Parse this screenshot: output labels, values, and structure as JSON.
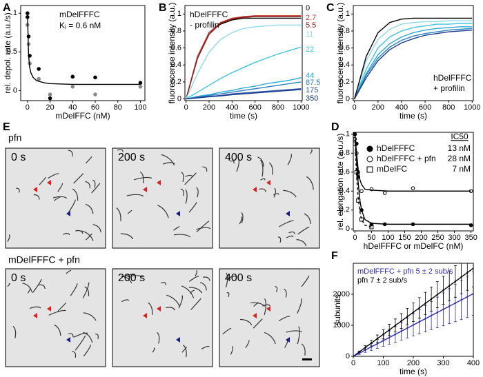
{
  "panel_labels": [
    "A",
    "B",
    "C",
    "D",
    "E",
    "F"
  ],
  "micrographs": [
    {
      "label": "pfn",
      "frames": [
        "0 s",
        "200 s",
        "400 s"
      ]
    },
    {
      "label": "mDelFFFC + pfn",
      "frames": [
        "0 s",
        "200 s",
        "400 s"
      ]
    }
  ],
  "chart_data": [
    {
      "type": "scatter",
      "annotations": [
        "mDelFFFC",
        "Kᵢ = 0.6 nM"
      ],
      "x_label": "mDelFFC (nM)",
      "y_label": "rel. depol. rate (a.u./s)",
      "xlim": [
        -6,
        104
      ],
      "xticks": [
        0,
        20,
        40,
        60,
        80,
        100
      ],
      "ylim": [
        -0.13,
        1.1
      ],
      "yticks": [
        0,
        0.5,
        1
      ],
      "series": [
        {
          "mode": "markers",
          "marker": "circle-filled",
          "color": "#000000",
          "x": [
            0,
            0,
            1,
            2,
            10,
            20,
            40,
            60,
            100
          ],
          "values": [
            1.0,
            0.95,
            0.7,
            0.45,
            0.28,
            -0.1,
            0.18,
            0.17,
            0.1
          ]
        },
        {
          "mode": "markers",
          "marker": "circle-filled",
          "color": "#888888",
          "x": [
            0,
            1,
            2,
            10,
            20,
            40,
            60,
            100
          ],
          "values": [
            0.85,
            0.6,
            0.35,
            0.15,
            -0.05,
            0.05,
            -0.05,
            0.05
          ]
        },
        {
          "mode": "line",
          "color": "#000000",
          "x": [
            0,
            1,
            2,
            3,
            5,
            8,
            10,
            15,
            20,
            40,
            60,
            80,
            100
          ],
          "values": [
            1.0,
            0.45,
            0.3,
            0.23,
            0.17,
            0.13,
            0.12,
            0.1,
            0.09,
            0.08,
            0.08,
            0.08,
            0.08
          ]
        }
      ]
    },
    {
      "type": "line",
      "annotations": [
        "hDelFFFC",
        "- profilin"
      ],
      "x_label": "time (s)",
      "y_label": "fluorescence intensity (a.u.)",
      "xlim": [
        -10,
        1010
      ],
      "xticks": [
        0,
        200,
        400,
        600,
        800,
        1000
      ],
      "ylim": [
        -0.02,
        1.1
      ],
      "yticks": [
        0,
        0.2,
        0.4,
        0.6,
        0.8,
        1
      ],
      "x": [
        0,
        100,
        200,
        300,
        400,
        500,
        600,
        700,
        800,
        900,
        1000
      ],
      "series": [
        {
          "name": "0",
          "color": "#000000",
          "values": [
            0,
            0.5,
            0.78,
            0.88,
            0.93,
            0.95,
            0.95,
            0.95,
            0.95,
            0.95,
            0.95
          ]
        },
        {
          "name": "2.7",
          "color": "#c0392b",
          "values": [
            0,
            0.5,
            0.78,
            0.9,
            0.95,
            0.97,
            0.98,
            0.98,
            0.98,
            0.98,
            0.98
          ]
        },
        {
          "name": "5.5",
          "color": "#8b1a1a",
          "values": [
            0,
            0.48,
            0.76,
            0.89,
            0.94,
            0.96,
            0.97,
            0.97,
            0.97,
            0.97,
            0.97
          ]
        },
        {
          "name": "11",
          "color": "#8fd8ea",
          "values": [
            0,
            0.3,
            0.55,
            0.7,
            0.78,
            0.83,
            0.85,
            0.86,
            0.87,
            0.87,
            0.87
          ]
        },
        {
          "name": "22",
          "color": "#3fc4e0",
          "values": [
            0,
            0.08,
            0.16,
            0.24,
            0.31,
            0.37,
            0.43,
            0.48,
            0.53,
            0.57,
            0.61
          ]
        },
        {
          "name": "44",
          "color": "#2aa8d8",
          "values": [
            0,
            0.03,
            0.05,
            0.08,
            0.1,
            0.13,
            0.15,
            0.18,
            0.2,
            0.22,
            0.25
          ]
        },
        {
          "name": "87.5",
          "color": "#2a7fc0",
          "values": [
            0,
            0.02,
            0.04,
            0.06,
            0.08,
            0.1,
            0.12,
            0.14,
            0.16,
            0.18,
            0.2
          ]
        },
        {
          "name": "175",
          "color": "#2a55a8",
          "values": [
            0,
            0.015,
            0.03,
            0.04,
            0.06,
            0.07,
            0.08,
            0.09,
            0.1,
            0.11,
            0.12
          ]
        },
        {
          "name": "350",
          "color": "#1a3a8a",
          "values": [
            0,
            0.012,
            0.025,
            0.035,
            0.05,
            0.06,
            0.07,
            0.08,
            0.09,
            0.1,
            0.11
          ]
        }
      ]
    },
    {
      "type": "line",
      "annotations": [
        "hDelFFFC",
        "+ profilin"
      ],
      "x_label": "time (s)",
      "y_label": "fluorescence intensity (a.u.)",
      "xlim": [
        -10,
        1010
      ],
      "xticks": [
        0,
        200,
        400,
        600,
        800,
        1000
      ],
      "ylim": [
        -0.02,
        1.1
      ],
      "yticks": [
        0,
        0.2,
        0.4,
        0.6,
        0.8,
        1
      ],
      "x": [
        0,
        100,
        200,
        300,
        400,
        500,
        600,
        700,
        800,
        900,
        1000
      ],
      "series": [
        {
          "color": "#8fd8ea",
          "values": [
            0,
            0.45,
            0.7,
            0.82,
            0.88,
            0.9,
            0.91,
            0.91,
            0.92,
            0.92,
            0.92
          ]
        },
        {
          "color": "#3fc4e0",
          "values": [
            0,
            0.35,
            0.6,
            0.73,
            0.8,
            0.84,
            0.86,
            0.88,
            0.88,
            0.89,
            0.89
          ]
        },
        {
          "color": "#2aa8d8",
          "values": [
            0,
            0.3,
            0.52,
            0.65,
            0.73,
            0.78,
            0.81,
            0.83,
            0.84,
            0.85,
            0.85
          ]
        },
        {
          "color": "#2a7fc0",
          "values": [
            0,
            0.28,
            0.48,
            0.61,
            0.69,
            0.74,
            0.77,
            0.79,
            0.81,
            0.82,
            0.83
          ]
        },
        {
          "color": "#1a3a8a",
          "values": [
            0,
            0.25,
            0.45,
            0.58,
            0.66,
            0.71,
            0.75,
            0.77,
            0.79,
            0.8,
            0.81
          ]
        },
        {
          "color": "#000000",
          "values": [
            0,
            0.5,
            0.78,
            0.9,
            0.94,
            0.95,
            0.95,
            0.95,
            0.95,
            0.95,
            0.95
          ]
        }
      ]
    },
    {
      "type": "scatter",
      "legend_header": "IC50",
      "x_label": "hDelFFFC or mDelFC (nM)",
      "y_label": "rel. elongation rate (a.u./s)",
      "xlim": [
        -5,
        357
      ],
      "xticks": [
        0,
        50,
        100,
        150,
        200,
        250,
        300,
        350
      ],
      "ylim": [
        -0.02,
        1.02
      ],
      "yticks": [
        0,
        0.2,
        0.4,
        0.6,
        0.8,
        1
      ],
      "series": [
        {
          "name": "hDelFFFC",
          "ic50": "13 nM",
          "mode": "markers",
          "marker": "circle-filled",
          "color": "#000000",
          "x": [
            0,
            5,
            10,
            20,
            50,
            90,
            175,
            350
          ],
          "values": [
            1.0,
            0.9,
            0.55,
            0.2,
            0.05,
            0.05,
            0.05,
            0.04
          ]
        },
        {
          "name": "hDelFFFC + pfn",
          "ic50": "28 nM",
          "mode": "markers",
          "marker": "circle-open",
          "color": "#000000",
          "x": [
            0,
            5,
            10,
            20,
            50,
            90,
            175,
            350
          ],
          "values": [
            0.95,
            0.8,
            0.6,
            0.4,
            0.42,
            0.38,
            0.43,
            0.4
          ]
        },
        {
          "name": "mDelFC",
          "ic50": "7 nM",
          "mode": "markers",
          "marker": "square-open",
          "color": "#000000",
          "x": [
            0,
            5,
            10,
            20,
            50
          ],
          "values": [
            0.9,
            0.6,
            0.3,
            0.1,
            0.02
          ]
        },
        {
          "mode": "line",
          "color": "#000000",
          "x": [
            0,
            5,
            10,
            15,
            20,
            30,
            50,
            100,
            350
          ],
          "values": [
            1.0,
            0.72,
            0.48,
            0.3,
            0.2,
            0.1,
            0.06,
            0.05,
            0.05
          ]
        },
        {
          "mode": "line",
          "color": "#000000",
          "x": [
            0,
            5,
            10,
            15,
            20,
            30,
            50,
            100,
            350
          ],
          "values": [
            1.0,
            0.8,
            0.62,
            0.52,
            0.47,
            0.42,
            0.41,
            0.4,
            0.4
          ]
        },
        {
          "mode": "line",
          "dash": true,
          "color": "#000000",
          "x": [
            0,
            3,
            6,
            10,
            15,
            20,
            30,
            50
          ],
          "values": [
            1.0,
            0.7,
            0.5,
            0.32,
            0.18,
            0.1,
            0.04,
            0.02
          ]
        }
      ]
    },
    {
      "type": "errorbar",
      "x_label": "time (s)",
      "y_label": "subunits",
      "xlim": [
        0,
        400
      ],
      "xticks": [
        0,
        100,
        200,
        300,
        400
      ],
      "ylim": [
        0,
        3000
      ],
      "yticks": [
        0,
        1000,
        2000
      ],
      "series": [
        {
          "name": "mDelFFFC + pfn 5 ± 2 sub/s",
          "mode": "errorbar",
          "color": "#2b2bb0",
          "x": [
            0,
            20,
            40,
            60,
            80,
            100,
            120,
            140,
            160,
            180,
            200,
            220,
            240,
            260,
            280,
            300,
            320,
            340,
            360,
            380,
            400
          ],
          "values": [
            0,
            101,
            202,
            303,
            404,
            505,
            606,
            707,
            808,
            909,
            1010,
            1111,
            1212,
            1313,
            1414,
            1515,
            1616,
            1717,
            1818,
            1919,
            2020
          ],
          "errors": [
            0,
            40,
            75,
            110,
            145,
            180,
            215,
            250,
            285,
            320,
            355,
            390,
            425,
            460,
            495,
            530,
            565,
            600,
            635,
            670,
            700
          ]
        },
        {
          "name": "pfn 7 ± 2 sub/s",
          "mode": "errorbar",
          "color": "#000000",
          "x": [
            0,
            20,
            40,
            60,
            80,
            100,
            120,
            140,
            160,
            180,
            200,
            220,
            240,
            260,
            280,
            300,
            320,
            340,
            360,
            380,
            400
          ],
          "values": [
            0,
            142,
            284,
            426,
            568,
            710,
            852,
            994,
            1136,
            1278,
            1420,
            1562,
            1704,
            1846,
            1988,
            2130,
            2272,
            2414,
            2556,
            2698,
            2840
          ],
          "errors": [
            0,
            30,
            60,
            90,
            120,
            150,
            180,
            210,
            240,
            270,
            300,
            330,
            360,
            390,
            420,
            450,
            480,
            510,
            540,
            570,
            600
          ]
        },
        {
          "mode": "line",
          "color": "#000000",
          "x": [
            0,
            400
          ],
          "values": [
            0,
            2840
          ]
        },
        {
          "mode": "line",
          "color": "#2b2bb0",
          "x": [
            0,
            400
          ],
          "values": [
            0,
            2020
          ]
        }
      ]
    }
  ]
}
